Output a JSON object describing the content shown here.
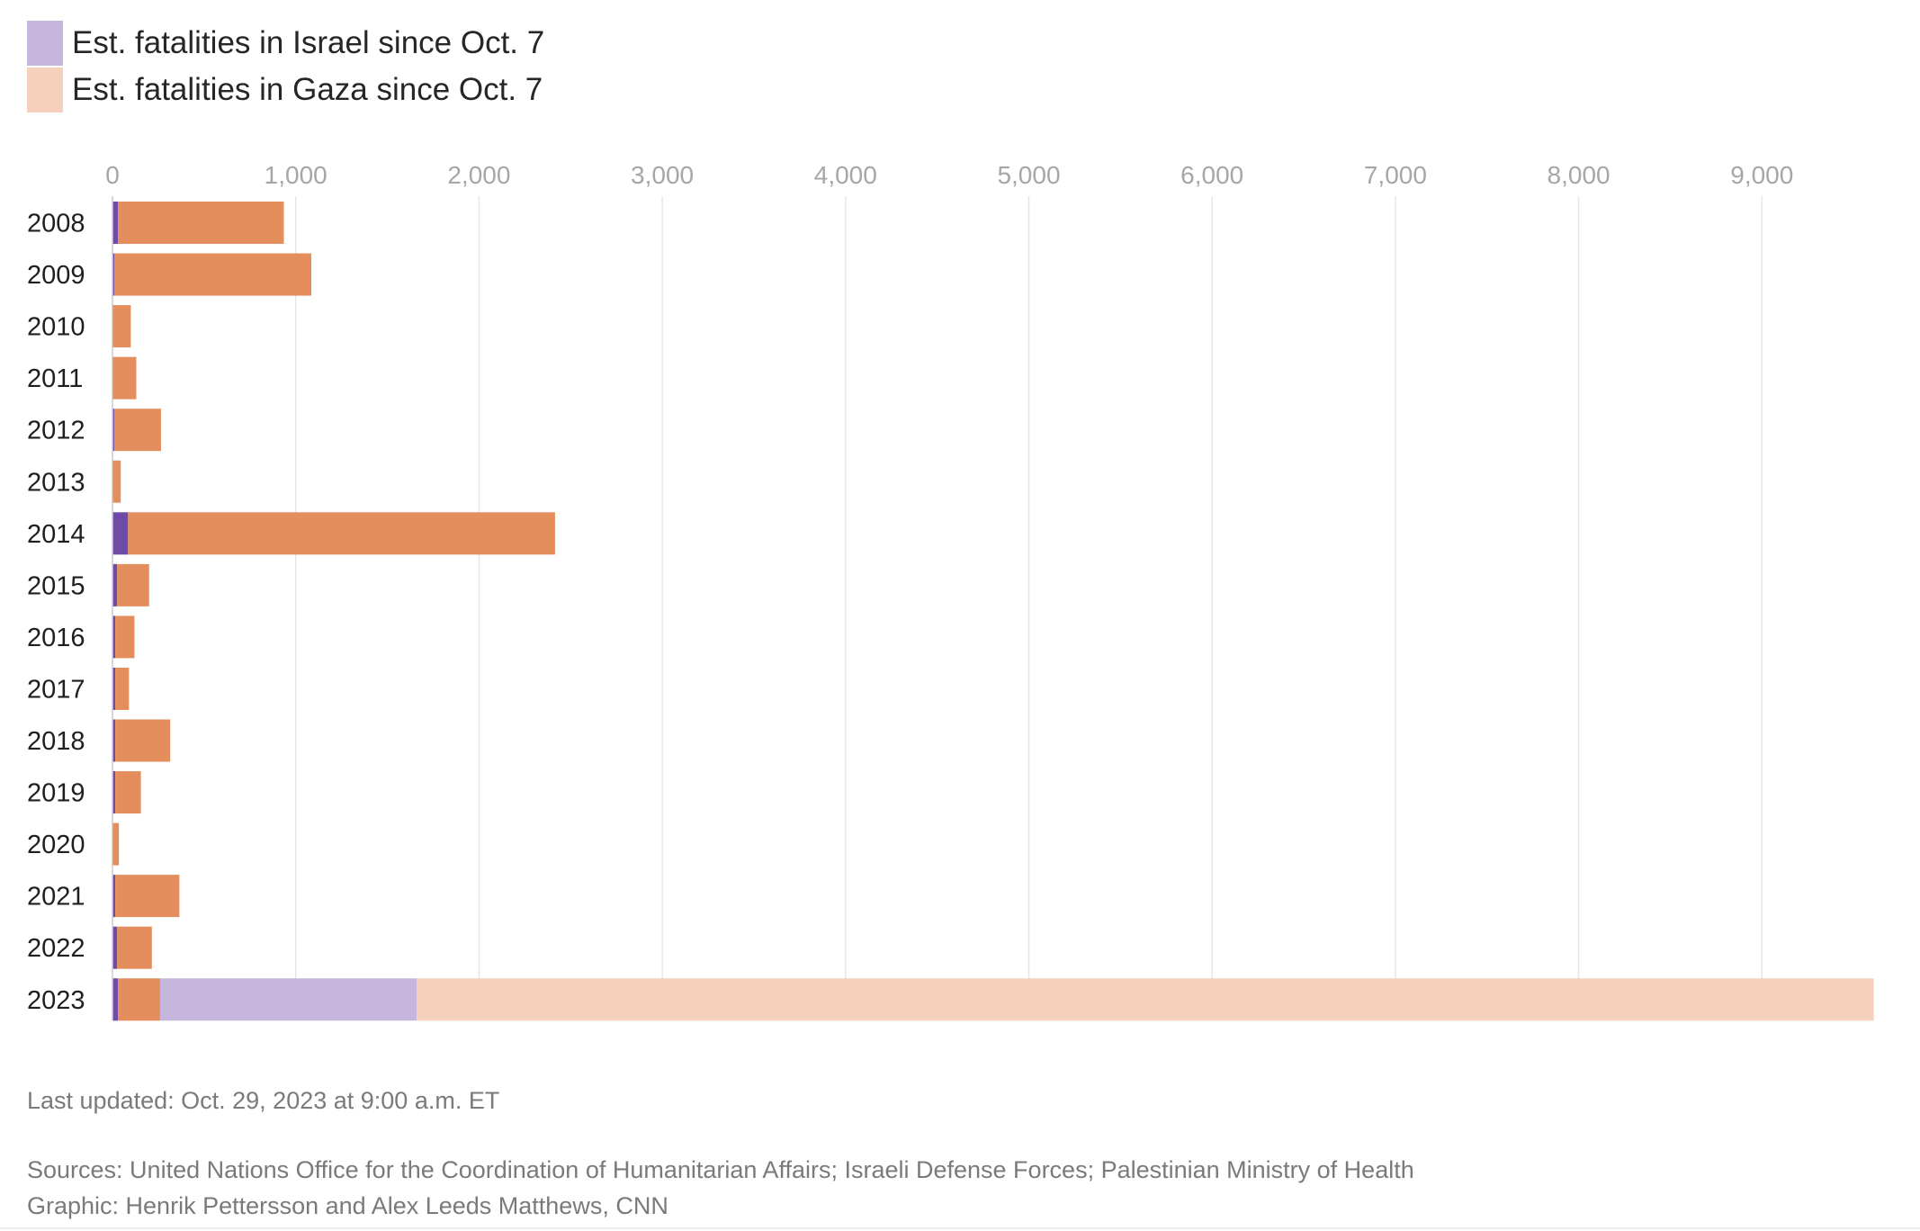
{
  "legend": [
    {
      "label": "Est. fatalities in Israel since Oct. 7",
      "color": "#c6b5dc"
    },
    {
      "label": "Est. fatalities in Gaza since Oct. 7",
      "color": "#f5d1bd"
    }
  ],
  "footer": {
    "updated": "Last updated: Oct. 29, 2023 at 9:00 a.m. ET",
    "sources": "Sources: United Nations Office for the Coordination of Humanitarian Affairs; Israeli Defense Forces; Palestinian Ministry of Health",
    "credit": "Graphic: Henrik Pettersson and Alex Leeds Matthews, CNN"
  },
  "chart_data": {
    "type": "bar",
    "orientation": "horizontal",
    "stacked": true,
    "xlim": [
      0,
      9600
    ],
    "x_ticks": [
      0,
      1000,
      2000,
      3000,
      4000,
      5000,
      6000,
      7000,
      8000,
      9000
    ],
    "x_tick_labels": [
      "0",
      "1,000",
      "2,000",
      "3,000",
      "4,000",
      "5,000",
      "6,000",
      "7,000",
      "8,000",
      "9,000"
    ],
    "grid": true,
    "legend_position": "top-left",
    "categories": [
      "2008",
      "2009",
      "2010",
      "2011",
      "2012",
      "2013",
      "2014",
      "2015",
      "2016",
      "2017",
      "2018",
      "2019",
      "2020",
      "2021",
      "2022",
      "2023"
    ],
    "series": [
      {
        "color": "#6d4ba7",
        "values": [
          30,
          10,
          5,
          5,
          10,
          5,
          85,
          25,
          15,
          15,
          15,
          15,
          5,
          15,
          25,
          30
        ]
      },
      {
        "color": "#e58e5d",
        "values": [
          905,
          1075,
          95,
          125,
          255,
          40,
          2330,
          175,
          105,
          75,
          300,
          140,
          30,
          350,
          190,
          230
        ]
      },
      {
        "name": "Est. fatalities in Israel since Oct. 7",
        "color": "#c6b5dc",
        "values": [
          0,
          0,
          0,
          0,
          0,
          0,
          0,
          0,
          0,
          0,
          0,
          0,
          0,
          0,
          0,
          1400
        ]
      },
      {
        "name": "Est. fatalities in Gaza since Oct. 7",
        "color": "#f5d1bd",
        "values": [
          0,
          0,
          0,
          0,
          0,
          0,
          0,
          0,
          0,
          0,
          0,
          0,
          0,
          0,
          0,
          7950
        ]
      }
    ]
  }
}
